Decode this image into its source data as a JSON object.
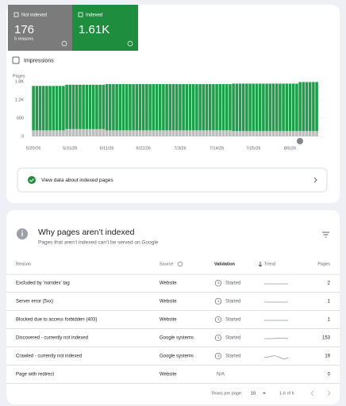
{
  "summary": [
    {
      "value": 176,
      "note": "5 reasons"
    },
    {
      "value": 1610,
      "label": "1.61K"
    }
  ],
  "impressions_label": "Impressions",
  "chart_data": {
    "type": "bar",
    "stacked": true,
    "y_label": "Pages",
    "categories": [
      "5/20/26",
      null,
      null,
      null,
      null,
      null,
      null,
      null,
      null,
      null,
      null,
      "5/31/26",
      null,
      null,
      null,
      null,
      null,
      null,
      null,
      null,
      null,
      null,
      "6/11/26",
      null,
      null,
      null,
      null,
      null,
      null,
      null,
      null,
      null,
      null,
      "6/22/26",
      null,
      null,
      null,
      null,
      null,
      null,
      null,
      null,
      null,
      null,
      "7/3/26",
      null,
      null,
      null,
      null,
      null,
      null,
      null,
      null,
      null,
      null,
      "7/14/26",
      null,
      null,
      null,
      null,
      null,
      null,
      null,
      null,
      null,
      null,
      "7/25/26",
      null,
      null,
      null,
      null,
      null,
      null,
      null,
      null,
      null,
      null,
      "8/5/26",
      null,
      null,
      null,
      null,
      null,
      null,
      null,
      null
    ],
    "series": [
      {
        "name": "Not indexed",
        "color": "#bdbdbd",
        "values": [
          200,
          200,
          200,
          200,
          200,
          200,
          200,
          200,
          200,
          200,
          240,
          240,
          240,
          240,
          240,
          240,
          240,
          240,
          240,
          240,
          240,
          240,
          200,
          200,
          200,
          200,
          200,
          200,
          200,
          200,
          200,
          200,
          200,
          200,
          200,
          200,
          200,
          200,
          200,
          200,
          200,
          200,
          200,
          200,
          200,
          200,
          200,
          200,
          200,
          200,
          200,
          200,
          200,
          200,
          200,
          200,
          200,
          200,
          200,
          200,
          176,
          176,
          176,
          176,
          176,
          176,
          176,
          176,
          176,
          176,
          176,
          176,
          176,
          176,
          176,
          176,
          176,
          176,
          176,
          176,
          176,
          176,
          176,
          176,
          176,
          176
        ]
      },
      {
        "name": "Indexed",
        "color": "#1e9e4a",
        "values": [
          1460,
          1460,
          1460,
          1460,
          1460,
          1460,
          1460,
          1460,
          1460,
          1460,
          1460,
          1460,
          1460,
          1460,
          1460,
          1460,
          1460,
          1460,
          1460,
          1460,
          1460,
          1460,
          1520,
          1520,
          1520,
          1520,
          1520,
          1520,
          1520,
          1520,
          1520,
          1520,
          1520,
          1520,
          1520,
          1520,
          1520,
          1520,
          1520,
          1520,
          1520,
          1520,
          1520,
          1520,
          1520,
          1520,
          1520,
          1520,
          1520,
          1520,
          1520,
          1520,
          1520,
          1520,
          1520,
          1520,
          1520,
          1520,
          1520,
          1520,
          1560,
          1560,
          1560,
          1560,
          1560,
          1560,
          1560,
          1560,
          1560,
          1560,
          1560,
          1560,
          1560,
          1560,
          1560,
          1560,
          1560,
          1560,
          1560,
          1560,
          1610,
          1610,
          1610,
          1610,
          1610,
          1610
        ]
      }
    ],
    "ylim": [
      0,
      1800
    ],
    "yticks": [
      0,
      600,
      {
        "value": 1200,
        "label": "1.2K"
      },
      {
        "value": 1800,
        "label": "1.8K"
      }
    ],
    "grid": true
  },
  "link": "View data about indexed pages",
  "section": {
    "title": "Why pages aren’t indexed",
    "subtitle": "Pages that aren’t indexed can’t be served on Google",
    "columns": [
      "Reason",
      "Source",
      "Validation",
      "Trend",
      "Pages"
    ],
    "rows": [
      [
        "Excluded by 'noindex' tag",
        "Website",
        "Started",
        "2"
      ],
      [
        "Server error (5xx)",
        "Website",
        "Started",
        "1"
      ],
      [
        "Blocked due to access forbidden (403)",
        "Website",
        "Started",
        "1"
      ],
      [
        "Discovered - currently not indexed",
        "Google systems",
        "Started",
        "153"
      ],
      [
        "Crawled - currently not indexed",
        "Google systems",
        "Started",
        "19"
      ],
      [
        "Page with redirect",
        "Website",
        "N/A",
        "0"
      ]
    ],
    "footer": {
      "rows_per_page_label": "Rows per page:",
      "rows_per_page": "10",
      "range": "1-6 of 6"
    }
  }
}
